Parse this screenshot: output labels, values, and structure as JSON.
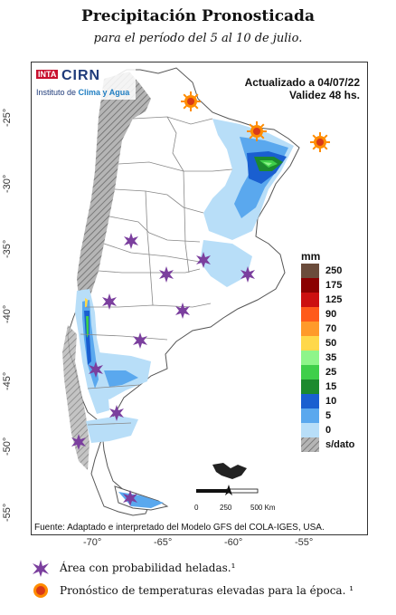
{
  "header": {
    "title": "Precipitación Pronosticada",
    "subtitle": "para el período del 5 al 10 de julio."
  },
  "logo": {
    "inta": "INTA",
    "cirn": "CIRN",
    "institute_prefix": "Instituto de ",
    "institute_highlight": "Clima y Agua"
  },
  "update": {
    "line1": "Actualizado a 04/07/22",
    "line2": "Validez 48 hs."
  },
  "axes": {
    "lat_labels": [
      "-25°",
      "-30°",
      "-35°",
      "-40°",
      "-45°",
      "-50°",
      "-55°"
    ],
    "lon_labels": [
      "-70°",
      "-65°",
      "-60°",
      "-55°"
    ]
  },
  "colorbar": {
    "unit": "mm",
    "levels": [
      {
        "label": "250",
        "color": "#6b4c3b"
      },
      {
        "label": "175",
        "color": "#8b0000"
      },
      {
        "label": "125",
        "color": "#cc1010"
      },
      {
        "label": "90",
        "color": "#ff5a1a"
      },
      {
        "label": "70",
        "color": "#ff9a2a"
      },
      {
        "label": "50",
        "color": "#ffd84a"
      },
      {
        "label": "35",
        "color": "#8ef58a"
      },
      {
        "label": "25",
        "color": "#3fcf4a"
      },
      {
        "label": "15",
        "color": "#1c8a2e"
      },
      {
        "label": "10",
        "color": "#1a5fd0"
      },
      {
        "label": "5",
        "color": "#5aa8ee"
      },
      {
        "label": "0",
        "color": "#b8def8"
      },
      {
        "label": "s/dato",
        "color": "#9a9a9a"
      }
    ]
  },
  "scale": {
    "zero": "0",
    "mid": "250",
    "end": "500 Km"
  },
  "source": "Fuente: Adaptado e interpretado del Modelo GFS del COLA-IGES, USA.",
  "legend": {
    "frost": "Área con probabilidad heladas.¹",
    "heat": "Pronóstico de temperaturas elevadas para la época. ¹"
  },
  "colors": {
    "frost": "#7b3f9e",
    "heat": "#ff8c00",
    "heat_core": "#d83a1a"
  }
}
